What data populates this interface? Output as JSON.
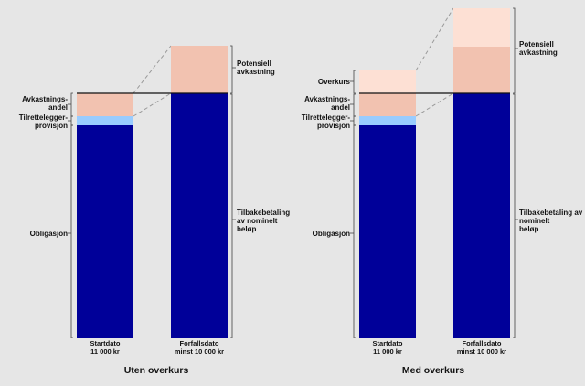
{
  "colors": {
    "background": "#e6e6e6",
    "bond": "#000099",
    "fee": "#99ccff",
    "return_share": "#f2c2b0",
    "potential_return": "#f2c2b0",
    "premium": "#fde0d4",
    "potential_upper": "#fde0d4"
  },
  "left_panel": {
    "title": "Uten overkurs",
    "bars": [
      {
        "caption_line1": "Startdato",
        "caption_line2": "11 000 kr"
      },
      {
        "caption_line1": "Forfallsdato",
        "caption_line2": "minst 10 000 kr"
      }
    ],
    "left_labels": {
      "return_share_line1": "Avkastnings-",
      "return_share_line2": "andel",
      "fee_line1": "Tilrettelegger-",
      "fee_line2": "provisjon",
      "bond": "Obligasjon"
    },
    "right_labels": {
      "potential_line1": "Potensiell",
      "potential_line2": "avkastning",
      "repayment_line1": "Tilbakebetaling",
      "repayment_line2": "av nominelt",
      "repayment_line3": "beløp"
    }
  },
  "right_panel": {
    "title": "Med overkurs",
    "bars": [
      {
        "caption_line1": "Startdato",
        "caption_line2": "11 000 kr"
      },
      {
        "caption_line1": "Forfallsdato",
        "caption_line2": "minst 10 000 kr"
      }
    ],
    "left_labels": {
      "premium": "Overkurs",
      "return_share_line1": "Avkastnings-",
      "return_share_line2": "andel",
      "fee_line1": "Tilrettelegger-",
      "fee_line2": "provisjon",
      "bond": "Obligasjon"
    },
    "right_labels": {
      "potential_line1": "Potensiell",
      "potential_line2": "avkastning",
      "repayment_line1": "Tilbakebetaling av",
      "repayment_line2": "nominelt",
      "repayment_line3": "beløp"
    }
  }
}
